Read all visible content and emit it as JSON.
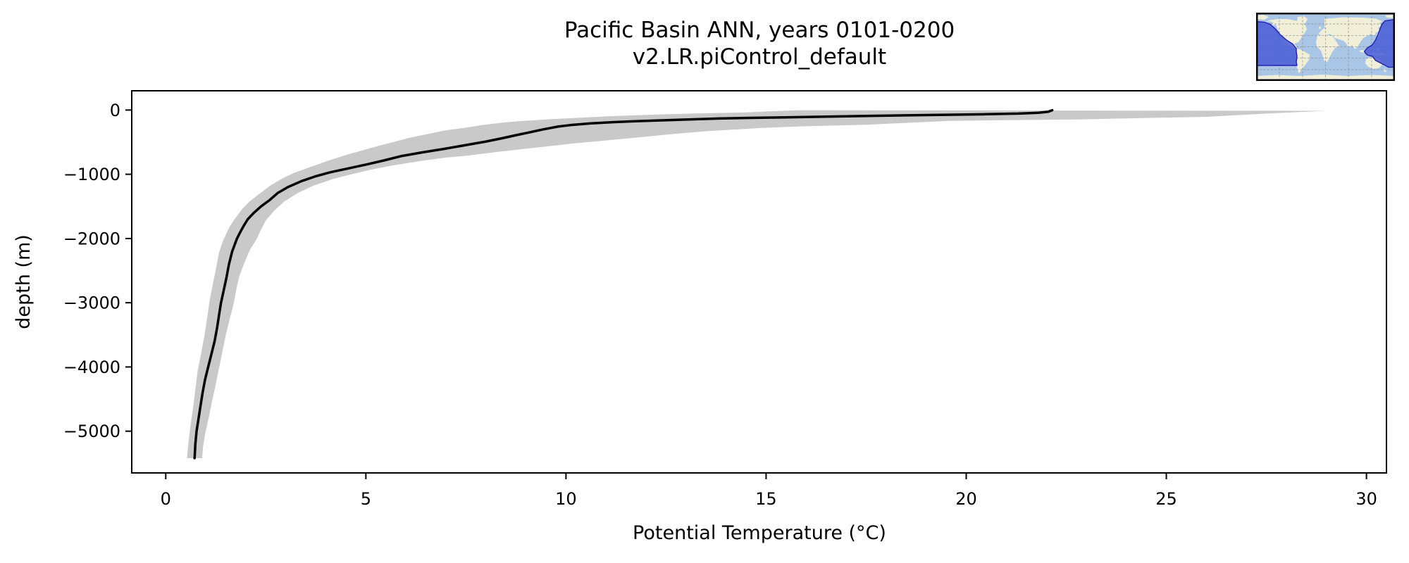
{
  "figure": {
    "title_line1": "Pacific Basin ANN, years 0101-0200",
    "title_line2": "v2.LR.piControl_default"
  },
  "axes": {
    "xlabel": "Potential Temperature (°C)",
    "ylabel": "depth (m)",
    "x_tick_values": [
      0,
      5,
      10,
      15,
      20,
      25,
      30
    ],
    "x_tick_labels": [
      "0",
      "5",
      "10",
      "15",
      "20",
      "25",
      "30"
    ],
    "y_tick_values": [
      0,
      -1000,
      -2000,
      -3000,
      -4000,
      -5000
    ],
    "y_tick_labels": [
      "0",
      "−1000",
      "−2000",
      "−3000",
      "−4000",
      "−5000"
    ]
  },
  "chart_data": {
    "type": "line",
    "title": "Pacific Basin ANN, years 0101-0200\nv2.LR.piControl_default",
    "xlabel": "Potential Temperature (°C)",
    "ylabel": "depth (m)",
    "xlim": [
      -0.85,
      30.5
    ],
    "ylim": [
      300,
      -5650
    ],
    "grid": false,
    "legend": null,
    "band_color": "#c9c9c9",
    "line_color": "#000000",
    "series": [
      {
        "name": "mean potential temperature profile",
        "style": "line",
        "color": "#000000",
        "points": [
          [
            22.15,
            -2
          ],
          [
            22.05,
            -25
          ],
          [
            21.8,
            -42
          ],
          [
            21.3,
            -55
          ],
          [
            20.5,
            -65
          ],
          [
            19.5,
            -74
          ],
          [
            18.5,
            -82
          ],
          [
            17.5,
            -92
          ],
          [
            16.5,
            -102
          ],
          [
            15.5,
            -113
          ],
          [
            14.6,
            -122
          ],
          [
            13.8,
            -132
          ],
          [
            13.0,
            -148
          ],
          [
            12.4,
            -160
          ],
          [
            11.8,
            -172
          ],
          [
            11.2,
            -188
          ],
          [
            10.6,
            -208
          ],
          [
            10.1,
            -235
          ],
          [
            9.8,
            -258
          ],
          [
            9.4,
            -305
          ],
          [
            9.1,
            -345
          ],
          [
            8.8,
            -385
          ],
          [
            8.4,
            -440
          ],
          [
            8.0,
            -490
          ],
          [
            7.5,
            -545
          ],
          [
            7.0,
            -600
          ],
          [
            6.4,
            -660
          ],
          [
            5.9,
            -715
          ],
          [
            5.45,
            -785
          ],
          [
            5.0,
            -850
          ],
          [
            4.55,
            -910
          ],
          [
            4.1,
            -970
          ],
          [
            3.75,
            -1030
          ],
          [
            3.4,
            -1105
          ],
          [
            3.05,
            -1200
          ],
          [
            2.8,
            -1290
          ],
          [
            2.6,
            -1400
          ],
          [
            2.38,
            -1500
          ],
          [
            2.2,
            -1600
          ],
          [
            2.05,
            -1700
          ],
          [
            1.95,
            -1800
          ],
          [
            1.86,
            -1900
          ],
          [
            1.78,
            -2000
          ],
          [
            1.66,
            -2200
          ],
          [
            1.58,
            -2400
          ],
          [
            1.52,
            -2600
          ],
          [
            1.45,
            -2800
          ],
          [
            1.38,
            -3000
          ],
          [
            1.33,
            -3200
          ],
          [
            1.28,
            -3400
          ],
          [
            1.22,
            -3600
          ],
          [
            1.14,
            -3800
          ],
          [
            1.06,
            -4000
          ],
          [
            0.98,
            -4200
          ],
          [
            0.92,
            -4400
          ],
          [
            0.87,
            -4600
          ],
          [
            0.82,
            -4800
          ],
          [
            0.77,
            -5000
          ],
          [
            0.74,
            -5200
          ],
          [
            0.72,
            -5420
          ]
        ]
      },
      {
        "name": "spread envelope lower edge (min temperature)",
        "style": "band-edge",
        "points": [
          [
            15.8,
            -2
          ],
          [
            15.0,
            -22
          ],
          [
            14.5,
            -36
          ],
          [
            13.5,
            -50
          ],
          [
            12.8,
            -61
          ],
          [
            12.0,
            -75
          ],
          [
            11.0,
            -99
          ],
          [
            10.1,
            -127
          ],
          [
            9.6,
            -143
          ],
          [
            9.25,
            -157
          ],
          [
            8.8,
            -175
          ],
          [
            8.35,
            -200
          ],
          [
            7.9,
            -235
          ],
          [
            7.5,
            -274
          ],
          [
            7.0,
            -315
          ],
          [
            6.6,
            -365
          ],
          [
            6.1,
            -430
          ],
          [
            5.7,
            -495
          ],
          [
            5.3,
            -560
          ],
          [
            4.9,
            -630
          ],
          [
            4.5,
            -700
          ],
          [
            4.05,
            -790
          ],
          [
            3.6,
            -890
          ],
          [
            3.2,
            -980
          ],
          [
            2.9,
            -1070
          ],
          [
            2.6,
            -1180
          ],
          [
            2.35,
            -1300
          ],
          [
            2.1,
            -1420
          ],
          [
            1.9,
            -1550
          ],
          [
            1.72,
            -1700
          ],
          [
            1.6,
            -1810
          ],
          [
            1.53,
            -1900
          ],
          [
            1.42,
            -2050
          ],
          [
            1.33,
            -2220
          ],
          [
            1.26,
            -2450
          ],
          [
            1.18,
            -2700
          ],
          [
            1.1,
            -2950
          ],
          [
            1.03,
            -3250
          ],
          [
            0.97,
            -3500
          ],
          [
            0.88,
            -3800
          ],
          [
            0.8,
            -4050
          ],
          [
            0.74,
            -4350
          ],
          [
            0.68,
            -4650
          ],
          [
            0.62,
            -4900
          ],
          [
            0.57,
            -5150
          ],
          [
            0.53,
            -5420
          ]
        ]
      },
      {
        "name": "spread envelope upper edge (max temperature)",
        "style": "band-edge",
        "points": [
          [
            29.0,
            -12
          ],
          [
            27.5,
            -55
          ],
          [
            26.0,
            -105
          ],
          [
            24.0,
            -130
          ],
          [
            22.8,
            -146
          ],
          [
            21.0,
            -158
          ],
          [
            19.6,
            -168
          ],
          [
            17.5,
            -228
          ],
          [
            16.0,
            -252
          ],
          [
            14.9,
            -277
          ],
          [
            13.5,
            -330
          ],
          [
            12.8,
            -365
          ],
          [
            11.9,
            -420
          ],
          [
            11.0,
            -474
          ],
          [
            10.2,
            -520
          ],
          [
            9.25,
            -584
          ],
          [
            8.3,
            -650
          ],
          [
            7.5,
            -712
          ],
          [
            7.0,
            -740
          ],
          [
            6.4,
            -790
          ],
          [
            5.7,
            -858
          ],
          [
            5.2,
            -920
          ],
          [
            4.7,
            -990
          ],
          [
            4.2,
            -1070
          ],
          [
            3.7,
            -1175
          ],
          [
            3.3,
            -1290
          ],
          [
            2.95,
            -1430
          ],
          [
            2.72,
            -1560
          ],
          [
            2.5,
            -1720
          ],
          [
            2.35,
            -1900
          ],
          [
            2.28,
            -2000
          ],
          [
            2.1,
            -2180
          ],
          [
            1.95,
            -2400
          ],
          [
            1.83,
            -2600
          ],
          [
            1.76,
            -2800
          ],
          [
            1.7,
            -3000
          ],
          [
            1.6,
            -3250
          ],
          [
            1.5,
            -3500
          ],
          [
            1.41,
            -3780
          ],
          [
            1.32,
            -4050
          ],
          [
            1.24,
            -4300
          ],
          [
            1.15,
            -4550
          ],
          [
            1.07,
            -4800
          ],
          [
            0.98,
            -5050
          ],
          [
            0.93,
            -5250
          ],
          [
            0.91,
            -5420
          ]
        ]
      }
    ]
  },
  "inset_map": {
    "name": "Pacific Basin highlight world map",
    "colors": {
      "ocean": "#aac6e6",
      "land": "#f2efd9",
      "highlight_fill": "#4a5cd6",
      "highlight_border": "#2020b0",
      "graticule": "#8a8a8a",
      "frame": "#000000"
    }
  }
}
